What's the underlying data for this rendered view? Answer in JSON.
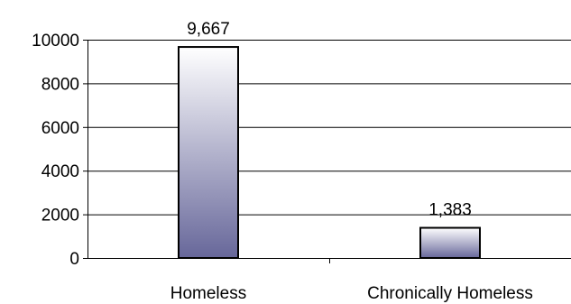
{
  "chart_data": {
    "type": "bar",
    "title": "",
    "xlabel": "",
    "ylabel": "",
    "categories": [
      "Homeless",
      "Chronically Homeless"
    ],
    "values": [
      9667,
      1383
    ],
    "data_labels": [
      "9,667",
      "1,383"
    ],
    "ylim": [
      0,
      10000
    ],
    "yticks": [
      0,
      2000,
      4000,
      6000,
      8000,
      10000
    ],
    "ytick_labels": [
      "0",
      "2000",
      "4000",
      "6000",
      "8000",
      "10000"
    ],
    "grid": true,
    "legend": "none",
    "colors": {
      "bar_top": "#ffffff",
      "bar_bottom": "#67679a",
      "bar_outline": "#000000",
      "gridline": "#000000",
      "text": "#000000"
    }
  }
}
